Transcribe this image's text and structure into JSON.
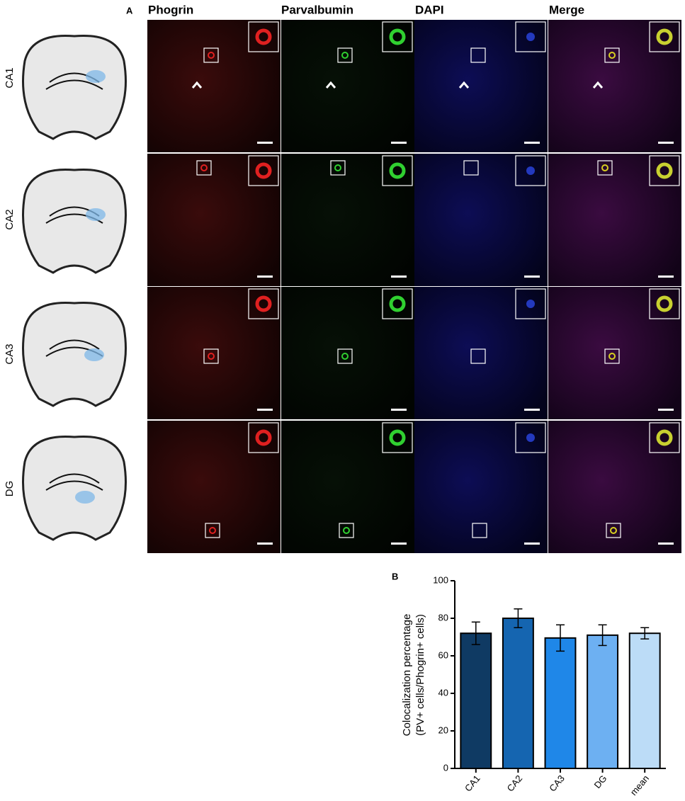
{
  "panel_a": {
    "label": "A",
    "columns": [
      "Phogrin",
      "Parvalbumin",
      "DAPI",
      "Merge"
    ],
    "rows": [
      "CA1",
      "CA2",
      "CA3",
      "DG"
    ]
  },
  "chart_data": {
    "type": "bar",
    "panel_label": "B",
    "ylabel": [
      "Colocalization percentage",
      "(PV+ cells/Phogrin+ cells)"
    ],
    "categories": [
      "CA1",
      "CA2",
      "CA3",
      "DG",
      "mean"
    ],
    "values": [
      72,
      80,
      69.5,
      71,
      72
    ],
    "errors": [
      6,
      5,
      7,
      5.5,
      3
    ],
    "colors": [
      "#0f3a63",
      "#1565b0",
      "#1f87e8",
      "#6db0f2",
      "#bcdcf7"
    ],
    "ylim": [
      0,
      100
    ],
    "yticks": [
      0,
      20,
      40,
      60,
      80,
      100
    ]
  }
}
